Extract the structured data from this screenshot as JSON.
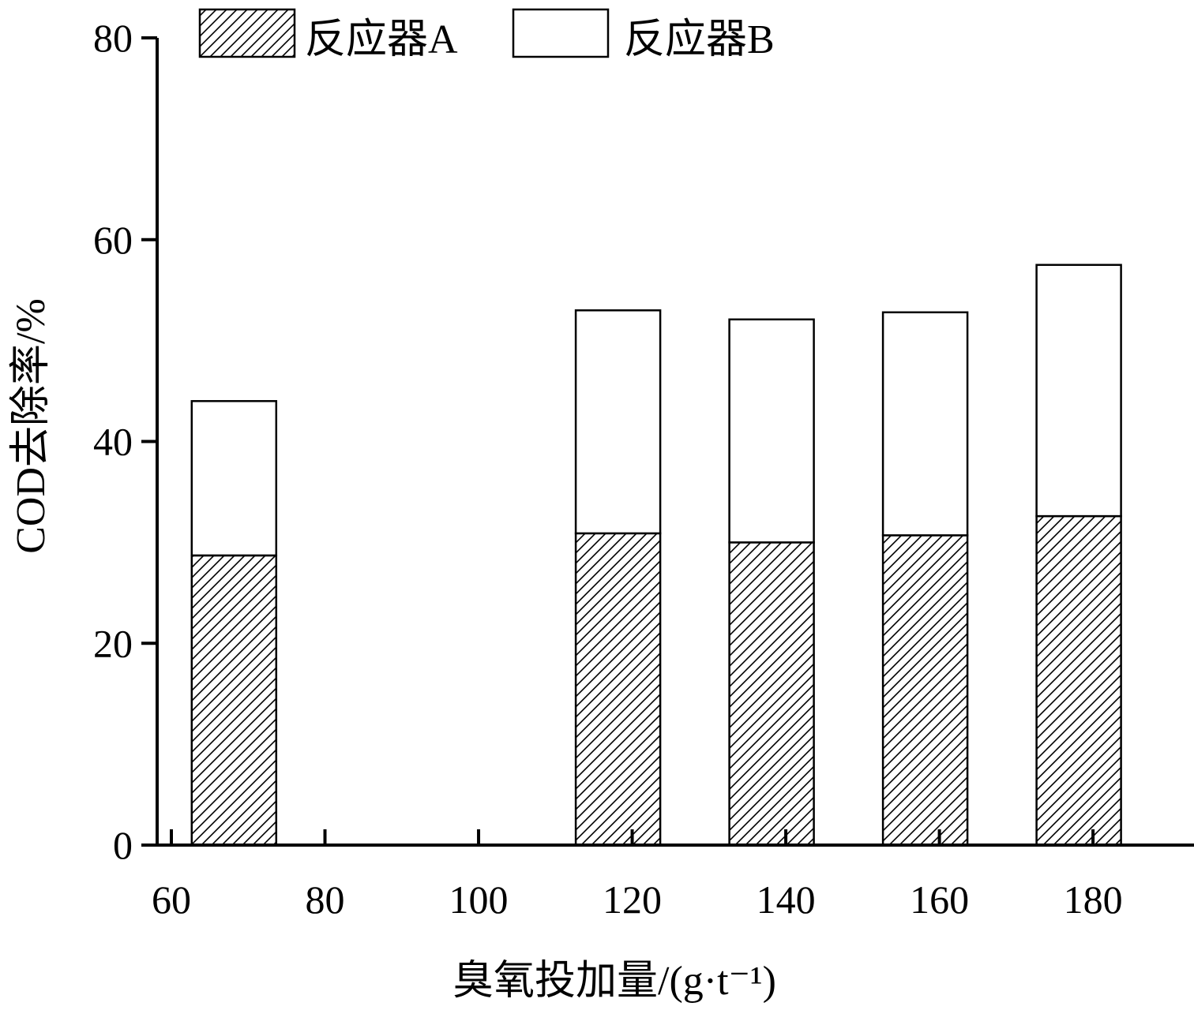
{
  "chart_data": {
    "type": "bar",
    "layout": "stacked",
    "xlabel": "臭氧投加量/(g·t⁻¹)",
    "ylabel": "COD去除率/%",
    "xlim": [
      60,
      195
    ],
    "ylim": [
      0,
      80
    ],
    "x_ticks": [
      60,
      80,
      100,
      120,
      140,
      160,
      180
    ],
    "y_ticks": [
      0,
      20,
      40,
      60,
      80
    ],
    "bar_width": 11,
    "x": [
      70,
      120,
      140,
      160,
      180
    ],
    "series": [
      {
        "name": "反应器A",
        "pattern": "diagonal-hatch",
        "values": [
          28.7,
          30.9,
          30.0,
          30.7,
          32.6
        ]
      },
      {
        "name": "反应器B",
        "pattern": "none",
        "values": [
          15.3,
          22.1,
          22.1,
          22.1,
          24.9
        ]
      }
    ],
    "totals": [
      44.0,
      53.0,
      52.1,
      52.8,
      57.5
    ],
    "legend_position": "top-left",
    "grid": false,
    "colors": {
      "stroke": "#000000",
      "fill": "#ffffff"
    }
  }
}
